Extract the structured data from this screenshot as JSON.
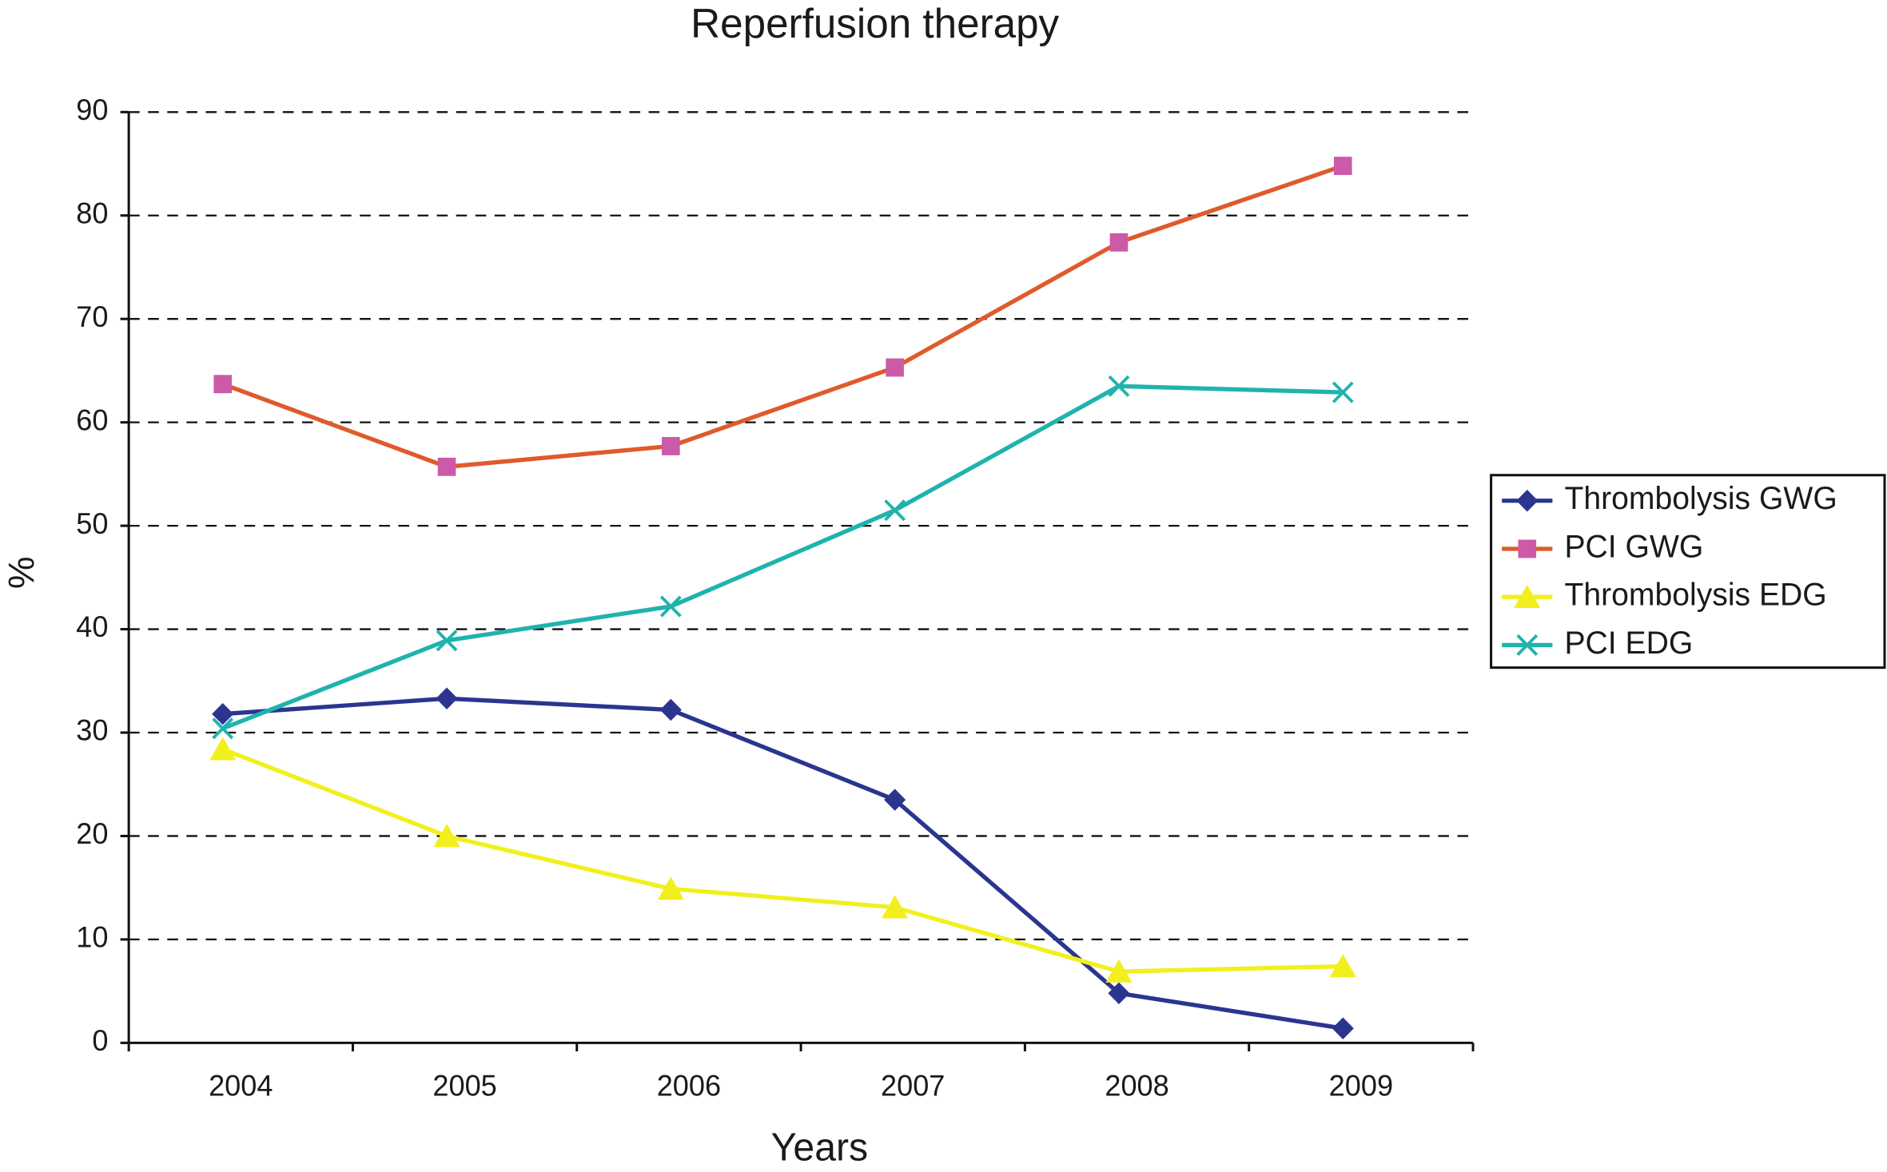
{
  "chart_data": {
    "type": "line",
    "title": "Reperfusion therapy",
    "x_label": "Years",
    "y_label": "%",
    "categories": [
      "2004",
      "2005",
      "2006",
      "2007",
      "2008",
      "2009"
    ],
    "series": [
      {
        "name": "Thrombolysis GWG",
        "color": "#2b3590",
        "marker": "diamond",
        "marker_color": "#2b3590",
        "values": [
          31.8,
          33.3,
          32.2,
          23.5,
          4.8,
          1.4
        ]
      },
      {
        "name": "PCI GWG",
        "color": "#e05a2b",
        "marker": "square",
        "marker_color": "#cc5aa8",
        "values": [
          63.7,
          55.7,
          57.7,
          65.3,
          77.4,
          84.8
        ]
      },
      {
        "name": "Thrombolysis EDG",
        "color": "#f2ef1e",
        "marker": "triangle",
        "marker_color": "#f2ef1e",
        "values": [
          28.4,
          20.0,
          14.9,
          13.1,
          6.9,
          7.4
        ]
      },
      {
        "name": "PCI EDG",
        "color": "#1fb3ad",
        "marker": "x",
        "marker_color": "#1fb3ad",
        "values": [
          30.4,
          38.9,
          42.2,
          51.5,
          63.5,
          62.9
        ]
      }
    ],
    "ylim": [
      0,
      90
    ],
    "yticks": [
      0,
      10,
      20,
      30,
      40,
      50,
      60,
      70,
      80,
      90
    ],
    "grid": true,
    "legend": "right"
  }
}
